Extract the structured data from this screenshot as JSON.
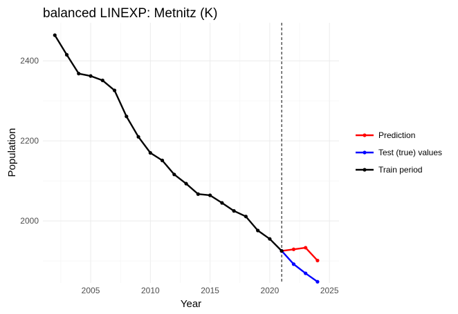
{
  "chart_data": {
    "type": "line",
    "title": "balanced LINEXP: Metnitz (K)",
    "xlabel": "Year",
    "ylabel": "Population",
    "xlim": [
      2001,
      2025.8
    ],
    "ylim": [
      1845,
      2495
    ],
    "x_ticks": [
      2005,
      2010,
      2015,
      2020,
      2025
    ],
    "y_ticks": [
      2000,
      2200,
      2400
    ],
    "grid": true,
    "vline": {
      "x": 2021,
      "style": "dashed"
    },
    "legend_position": "right",
    "series": [
      {
        "name": "Prediction",
        "color": "#ff0000",
        "x": [
          2021,
          2022,
          2023,
          2024
        ],
        "y": [
          1925,
          1929,
          1933,
          1901
        ]
      },
      {
        "name": "Test (true) values",
        "color": "#0000ff",
        "x": [
          2021,
          2022,
          2023,
          2024
        ],
        "y": [
          1925,
          1892,
          1869,
          1848
        ]
      },
      {
        "name": "Train period",
        "color": "#000000",
        "x": [
          2002,
          2003,
          2004,
          2005,
          2006,
          2007,
          2008,
          2009,
          2010,
          2011,
          2012,
          2013,
          2014,
          2015,
          2016,
          2017,
          2018,
          2019,
          2020,
          2021
        ],
        "y": [
          2464,
          2415,
          2368,
          2362,
          2351,
          2326,
          2261,
          2210,
          2170,
          2151,
          2116,
          2093,
          2067,
          2064,
          2045,
          2025,
          2011,
          1976,
          1955,
          1925
        ]
      }
    ]
  }
}
